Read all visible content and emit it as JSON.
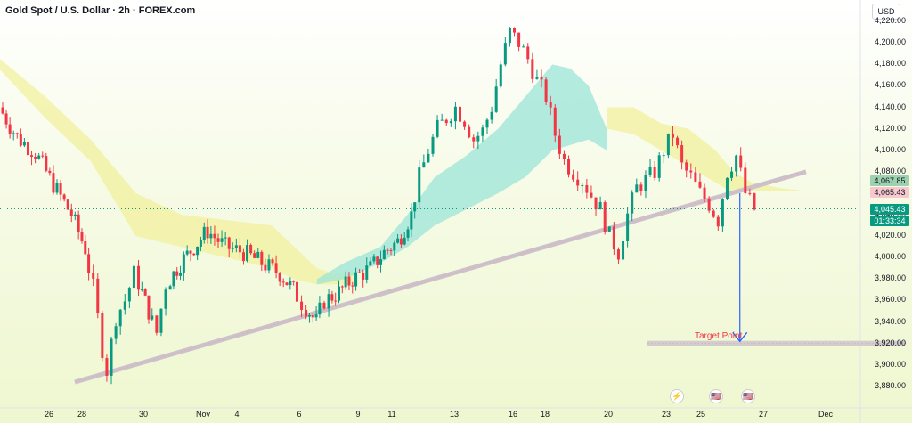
{
  "title": "Gold Spot / U.S. Dollar · 2h · FOREX.com",
  "currency": "USD",
  "colors": {
    "up": "#089981",
    "down": "#f23645",
    "cloud_bull": "#9be4d8",
    "cloud_bear": "#f1f09d",
    "trend": "#c9c3cc",
    "arrow": "#2962ff"
  },
  "chart_data": {
    "type": "candlestick",
    "title": "Gold Spot / U.S. Dollar · 2h · FOREX.com",
    "xlabel": "",
    "ylabel": "",
    "ylim": [
      3860,
      4240
    ],
    "y_ticks": [
      3880,
      3900,
      3920,
      3940,
      3960,
      3980,
      4000,
      4020,
      4040,
      4060,
      4080,
      4100,
      4120,
      4140,
      4160,
      4180,
      4200,
      4220
    ],
    "y_tick_labels": [
      "3,880.00",
      "3,900.00",
      "3,920.00",
      "3,940.00",
      "3,960.00",
      "3,980.00",
      "4,000.00",
      "4,020.00",
      "4,040.00",
      "4,060.00",
      "4,080.00",
      "4,100.00",
      "4,120.00",
      "4,140.00",
      "4,160.00",
      "4,180.00",
      "4,200.00",
      "4,220.00"
    ],
    "x_ticks": [
      "26",
      "28",
      "30",
      "Nov",
      "4",
      "6",
      "9",
      "11",
      "13",
      "16",
      "18",
      "20",
      "23",
      "25",
      "27",
      "Dec"
    ],
    "close_path": [
      [
        0,
        4140
      ],
      [
        4,
        4112
      ],
      [
        8,
        4098
      ],
      [
        12,
        4068
      ],
      [
        16,
        4040
      ],
      [
        19,
        4008
      ],
      [
        21,
        3972
      ],
      [
        23,
        3915
      ],
      [
        24,
        3895
      ],
      [
        26,
        3945
      ],
      [
        28,
        3960
      ],
      [
        30,
        3985
      ],
      [
        33,
        3950
      ],
      [
        35,
        3930
      ],
      [
        37,
        3975
      ],
      [
        40,
        3995
      ],
      [
        43,
        4010
      ],
      [
        46,
        4025
      ],
      [
        50,
        4010
      ],
      [
        54,
        4005
      ],
      [
        58,
        3995
      ],
      [
        62,
        3985
      ],
      [
        65,
        3970
      ],
      [
        67,
        3958
      ],
      [
        70,
        3940
      ],
      [
        72,
        3960
      ],
      [
        75,
        3968
      ],
      [
        78,
        3980
      ],
      [
        82,
        3990
      ],
      [
        85,
        4005
      ],
      [
        88,
        4015
      ],
      [
        91,
        4040
      ],
      [
        93,
        4075
      ],
      [
        95,
        4100
      ],
      [
        97,
        4120
      ],
      [
        99,
        4130
      ],
      [
        101,
        4140
      ],
      [
        103,
        4128
      ],
      [
        105,
        4110
      ],
      [
        107,
        4118
      ],
      [
        109,
        4140
      ],
      [
        111,
        4180
      ],
      [
        113,
        4210
      ],
      [
        115,
        4200
      ],
      [
        117,
        4185
      ],
      [
        119,
        4165
      ],
      [
        121,
        4150
      ],
      [
        123,
        4115
      ],
      [
        125,
        4090
      ],
      [
        127,
        4080
      ],
      [
        129,
        4072
      ],
      [
        131,
        4058
      ],
      [
        133,
        4045
      ],
      [
        135,
        4020
      ],
      [
        137,
        4005
      ],
      [
        139,
        4040
      ],
      [
        141,
        4065
      ],
      [
        143,
        4072
      ],
      [
        145,
        4080
      ],
      [
        147,
        4100
      ],
      [
        149,
        4115
      ],
      [
        151,
        4085
      ],
      [
        153,
        4075
      ],
      [
        155,
        4060
      ],
      [
        157,
        4050
      ],
      [
        159,
        4035
      ],
      [
        161,
        4080
      ],
      [
        163,
        4095
      ],
      [
        165,
        4060
      ],
      [
        167,
        4045
      ]
    ],
    "trendline": {
      "start": [
        0,
        3884
      ],
      "end": [
        190,
        4080
      ]
    },
    "cloud_bear_top": [
      [
        0,
        4185
      ],
      [
        10,
        4150
      ],
      [
        20,
        4110
      ],
      [
        30,
        4060
      ],
      [
        40,
        4040
      ],
      [
        50,
        4035
      ],
      [
        60,
        4030
      ],
      [
        65,
        4010
      ],
      [
        70,
        3990
      ],
      [
        74,
        3985
      ],
      [
        78,
        3985
      ]
    ],
    "cloud_bear_bottom": [
      [
        0,
        4175
      ],
      [
        10,
        4130
      ],
      [
        20,
        4090
      ],
      [
        30,
        4020
      ],
      [
        40,
        4010
      ],
      [
        50,
        4000
      ],
      [
        60,
        3990
      ],
      [
        65,
        3980
      ],
      [
        70,
        3975
      ],
      [
        74,
        3975
      ],
      [
        78,
        3975
      ]
    ],
    "cloud_bull_top": [
      [
        70,
        3980
      ],
      [
        76,
        3995
      ],
      [
        84,
        4010
      ],
      [
        90,
        4040
      ],
      [
        96,
        4075
      ],
      [
        103,
        4095
      ],
      [
        110,
        4120
      ],
      [
        116,
        4150
      ],
      [
        122,
        4180
      ],
      [
        126,
        4176
      ],
      [
        130,
        4160
      ],
      [
        134,
        4120
      ]
    ],
    "cloud_bull_bottom": [
      [
        70,
        3975
      ],
      [
        76,
        3980
      ],
      [
        84,
        3995
      ],
      [
        90,
        4010
      ],
      [
        96,
        4030
      ],
      [
        103,
        4045
      ],
      [
        110,
        4060
      ],
      [
        116,
        4075
      ],
      [
        122,
        4100
      ],
      [
        126,
        4105
      ],
      [
        130,
        4110
      ],
      [
        134,
        4100
      ]
    ],
    "cloud_bear_top_2": [
      [
        134,
        4140
      ],
      [
        140,
        4140
      ],
      [
        146,
        4125
      ],
      [
        152,
        4120
      ],
      [
        158,
        4100
      ],
      [
        162,
        4080
      ],
      [
        166,
        4070
      ],
      [
        172,
        4065
      ],
      [
        178,
        4062
      ]
    ],
    "cloud_bear_bottom_2": [
      [
        134,
        4120
      ],
      [
        140,
        4115
      ],
      [
        146,
        4100
      ],
      [
        152,
        4085
      ],
      [
        158,
        4070
      ],
      [
        162,
        4060
      ],
      [
        166,
        4062
      ],
      [
        172,
        4062
      ],
      [
        178,
        4062
      ]
    ],
    "price_labels": [
      {
        "label": "4,067.85",
        "value": 4067.85,
        "color": "#9dd2b0",
        "text_color": "#131722"
      },
      {
        "label": "4,065.43",
        "value": 4065.43,
        "color": "#f8c8cf",
        "text_color": "#131722"
      },
      {
        "label": "4,045.43",
        "value": 4045.43,
        "color": "#089981",
        "text_color": "#ffffff"
      },
      {
        "label": "01:33:34",
        "value": 4039.5,
        "color": "#089981",
        "text_color": "#ffffff"
      }
    ],
    "target": {
      "label": "Target Point",
      "value": 3920,
      "x_start": 143,
      "x_end": 190
    },
    "arrow": {
      "x": 163,
      "from": 4060,
      "to": 3922
    },
    "events": [
      "⚡",
      "🇺🇸",
      "🇺🇸"
    ]
  }
}
